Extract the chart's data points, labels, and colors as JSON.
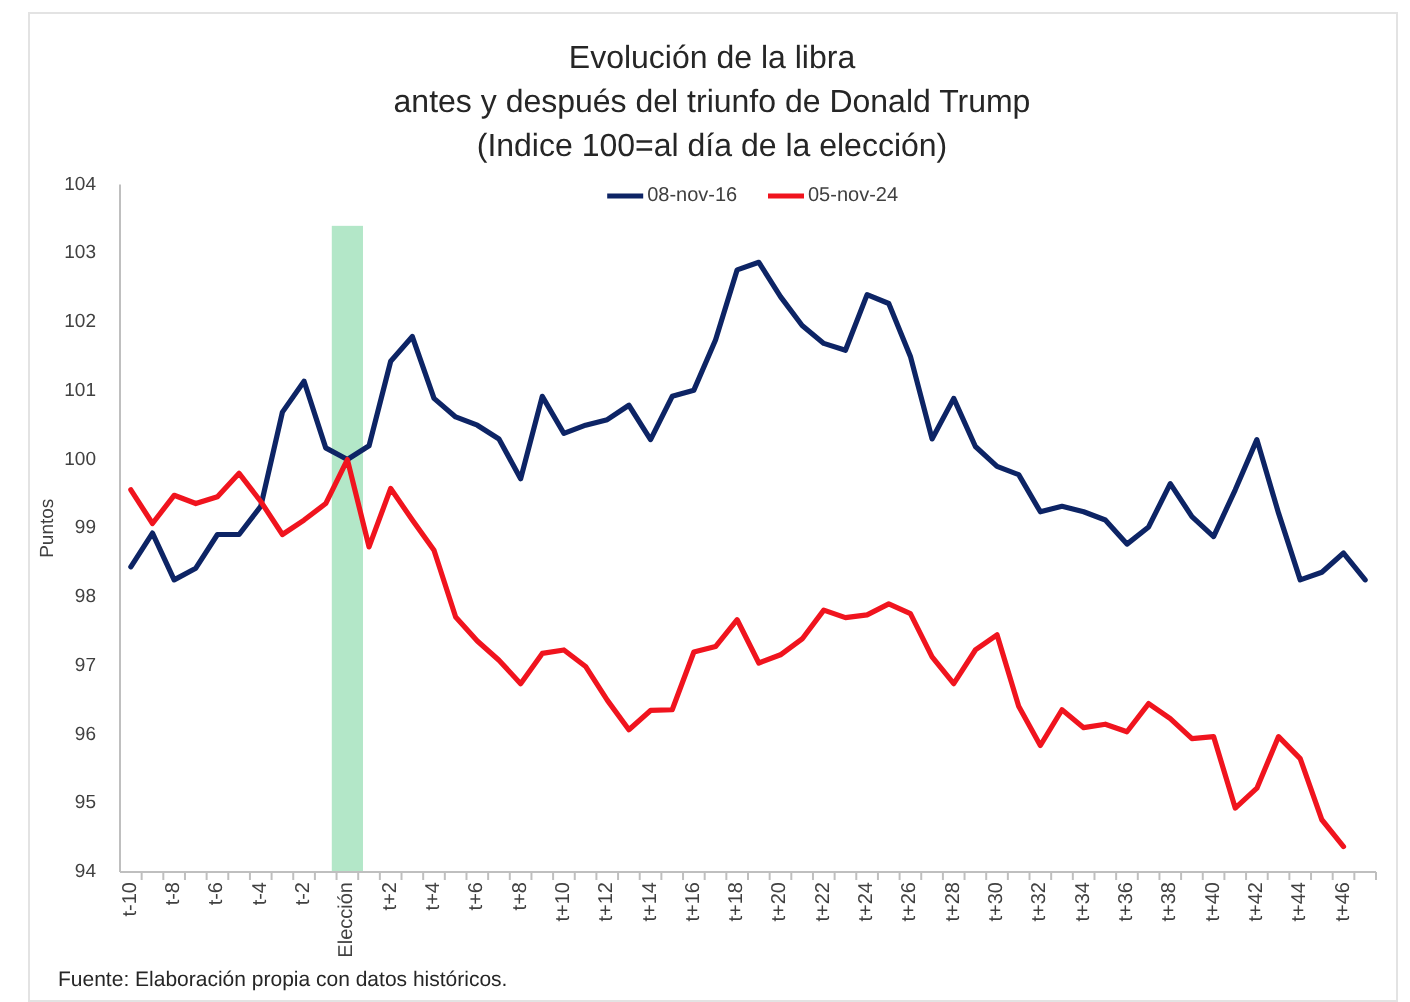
{
  "chart_data": {
    "type": "line",
    "title": "Evolución de la libra\nantes y después del triunfo de Donald Trump\n(Indice 100=al día de la elección)",
    "ylabel": "Puntos",
    "annotations": [
      "Fuente: Elaboración propia con datos históricos."
    ],
    "legend": "top",
    "categories": [
      "t-10",
      null,
      "t-8",
      null,
      "t-6",
      null,
      "t-4",
      null,
      "t-2",
      null,
      "Elección",
      null,
      "t+2",
      null,
      "t+4",
      null,
      "t+6",
      null,
      "t+8",
      null,
      "t+10",
      null,
      "t+12",
      null,
      "t+14",
      null,
      "t+16",
      null,
      "t+18",
      null,
      "t+20",
      null,
      "t+22",
      null,
      "t+24",
      null,
      "t+26",
      null,
      "t+28",
      null,
      "t+30",
      null,
      "t+32",
      null,
      "t+34",
      null,
      "t+36",
      null,
      "t+38",
      null,
      "t+40",
      null,
      "t+42",
      null,
      "t+44",
      null,
      "t+46",
      null
    ],
    "ylim": [
      94,
      104
    ],
    "yticks": [
      94,
      95,
      96,
      97,
      98,
      99,
      100,
      101,
      102,
      103,
      104
    ],
    "series": [
      {
        "type": "bar",
        "color": "#b3e7c8",
        "base": [
          null,
          null,
          null,
          null,
          null,
          null,
          null,
          null,
          null,
          null,
          94,
          null,
          null,
          null,
          null,
          null,
          null,
          null,
          null,
          null,
          null,
          null,
          null,
          null,
          null,
          null,
          null,
          null,
          null,
          null,
          null,
          null,
          null,
          null,
          null,
          null,
          null,
          null,
          null,
          null,
          null,
          null,
          null,
          null,
          null,
          null,
          null,
          null,
          null,
          null,
          null,
          null,
          null,
          null,
          null,
          null,
          null,
          null
        ],
        "values": [
          null,
          null,
          null,
          null,
          null,
          null,
          null,
          null,
          null,
          null,
          9.4,
          null,
          null,
          null,
          null,
          null,
          null,
          null,
          null,
          null,
          null,
          null,
          null,
          null,
          null,
          null,
          null,
          null,
          null,
          null,
          null,
          null,
          null,
          null,
          null,
          null,
          null,
          null,
          null,
          null,
          null,
          null,
          null,
          null,
          null,
          null,
          null,
          null,
          null,
          null,
          null,
          null,
          null,
          null,
          null,
          null,
          null,
          null
        ]
      },
      {
        "name": "08-nov-16",
        "color": "#0d2465",
        "values": [
          98.44,
          98.93,
          98.25,
          98.42,
          98.91,
          98.91,
          99.32,
          100.69,
          101.14,
          100.17,
          100.0,
          100.2,
          101.43,
          101.79,
          100.89,
          100.62,
          100.5,
          100.3,
          99.72,
          100.92,
          100.38,
          100.5,
          100.58,
          100.79,
          100.29,
          100.92,
          101.01,
          101.74,
          102.76,
          102.87,
          102.37,
          101.95,
          101.69,
          101.59,
          102.4,
          102.27,
          101.5,
          100.3,
          100.89,
          100.19,
          99.9,
          99.78,
          99.24,
          99.32,
          99.24,
          99.12,
          98.77,
          99.02,
          99.65,
          99.17,
          98.88,
          99.56,
          100.29,
          99.22,
          98.25,
          98.36,
          98.64,
          98.25
        ]
      },
      {
        "name": "05-nov-24",
        "color": "#f0141e",
        "values": [
          99.56,
          99.07,
          99.48,
          99.36,
          99.46,
          99.8,
          99.39,
          98.91,
          99.12,
          99.36,
          100.0,
          98.73,
          99.58,
          99.12,
          98.68,
          97.71,
          97.36,
          97.08,
          96.74,
          97.18,
          97.23,
          96.99,
          96.5,
          96.07,
          96.35,
          96.36,
          97.2,
          97.28,
          97.67,
          97.04,
          97.16,
          97.39,
          97.81,
          97.7,
          97.74,
          97.9,
          97.76,
          97.13,
          96.74,
          97.23,
          97.45,
          96.41,
          95.84,
          96.36,
          96.1,
          96.15,
          96.04,
          96.45,
          96.23,
          95.94,
          95.97,
          94.93,
          95.22,
          95.97,
          95.65,
          94.76,
          94.37,
          null
        ]
      }
    ]
  }
}
